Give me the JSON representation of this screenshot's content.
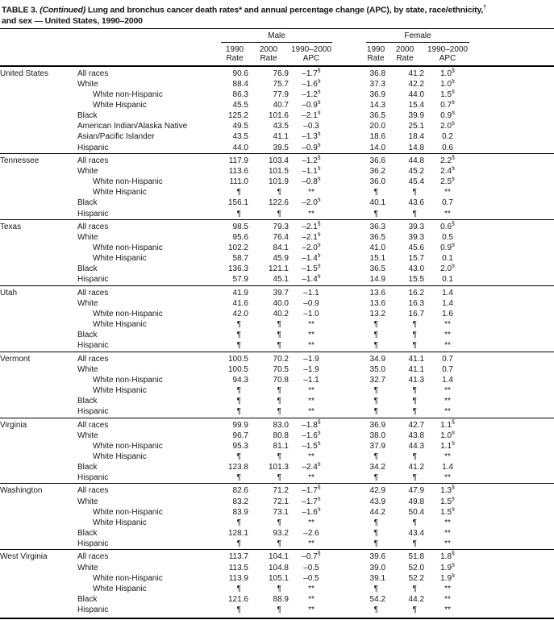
{
  "title": {
    "prefix": "TABLE 3.",
    "continued": "(Continued)",
    "line1_rest": " Lung and bronchus cancer death rates* and annual percentage change (APC), by state, race/ethnicity,",
    "dagger": "†",
    "line2": "and sex — United States, 1990–2000"
  },
  "header": {
    "male_label": "Male",
    "female_label": "Female",
    "col_year1": "1990",
    "col_year2": "2000",
    "col_range": "1990–2000",
    "col_rate": "Rate",
    "col_apc": "APC"
  },
  "markers": {
    "suppressed_rate": "¶",
    "suppressed_apc": "**",
    "significant": "§"
  },
  "sections": [
    {
      "state": "United States",
      "rows": [
        {
          "race": "All races",
          "indent": false,
          "values": [
            "90.6",
            "76.9",
            "–1.7§",
            "36.8",
            "41.2",
            "1.0§"
          ]
        },
        {
          "race": "White",
          "indent": false,
          "values": [
            "88.4",
            "75.7",
            "–1.6§",
            "37.3",
            "42.2",
            "1.0§"
          ]
        },
        {
          "race": "White non-Hispanic",
          "indent": true,
          "values": [
            "86.3",
            "77.9",
            "–1.2§",
            "36.9",
            "44.0",
            "1.5§"
          ]
        },
        {
          "race": "White Hispanic",
          "indent": true,
          "values": [
            "45.5",
            "40.7",
            "–0.9§",
            "14.3",
            "15.4",
            "0.7§"
          ]
        },
        {
          "race": "Black",
          "indent": false,
          "values": [
            "125.2",
            "101.6",
            "–2.1§",
            "36.5",
            "39.9",
            "0.9§"
          ]
        },
        {
          "race": "American Indian/Alaska Native",
          "indent": false,
          "values": [
            "49.5",
            "43.5",
            "–0.3",
            "20.0",
            "25.1",
            "2.0§"
          ]
        },
        {
          "race": "Asian/Pacific Islander",
          "indent": false,
          "values": [
            "43.5",
            "41.1",
            "–1.3§",
            "18.6",
            "18.4",
            "0.2"
          ]
        },
        {
          "race": "Hispanic",
          "indent": false,
          "values": [
            "44.0",
            "39.5",
            "–0.9§",
            "14.0",
            "14.8",
            "0.6"
          ]
        }
      ]
    },
    {
      "state": "Tennessee",
      "rows": [
        {
          "race": "All races",
          "indent": false,
          "values": [
            "117.9",
            "103.4",
            "–1.2§",
            "36.6",
            "44.8",
            "2.2§"
          ]
        },
        {
          "race": "White",
          "indent": false,
          "values": [
            "113.6",
            "101.5",
            "–1.1§",
            "36.2",
            "45.2",
            "2.4§"
          ]
        },
        {
          "race": "White non-Hispanic",
          "indent": true,
          "values": [
            "111.0",
            "101.9",
            "–0.8§",
            "36.0",
            "45.4",
            "2.5§"
          ]
        },
        {
          "race": "White Hispanic",
          "indent": true,
          "values": [
            "¶",
            "¶",
            "**",
            "¶",
            "¶",
            "**"
          ]
        },
        {
          "race": "Black",
          "indent": false,
          "values": [
            "156.1",
            "122.6",
            "–2.0§",
            "40.1",
            "43.6",
            "0.7"
          ]
        },
        {
          "race": "Hispanic",
          "indent": false,
          "values": [
            "¶",
            "¶",
            "**",
            "¶",
            "¶",
            "**"
          ]
        }
      ]
    },
    {
      "state": "Texas",
      "rows": [
        {
          "race": "All races",
          "indent": false,
          "values": [
            "98.5",
            "79.3",
            "–2.1§",
            "36.3",
            "39.3",
            "0.6§"
          ]
        },
        {
          "race": "White",
          "indent": false,
          "values": [
            "95.6",
            "76.4",
            "–2.1§",
            "36.5",
            "39.3",
            "0.5"
          ]
        },
        {
          "race": "White non-Hispanic",
          "indent": true,
          "values": [
            "102.2",
            "84.1",
            "–2.0§",
            "41.0",
            "45.6",
            "0.9§"
          ]
        },
        {
          "race": "White Hispanic",
          "indent": true,
          "values": [
            "58.7",
            "45.9",
            "–1.4§",
            "15.1",
            "15.7",
            "0.1"
          ]
        },
        {
          "race": "Black",
          "indent": false,
          "values": [
            "136.3",
            "121.1",
            "–1.5§",
            "36.5",
            "43.0",
            "2.0§"
          ]
        },
        {
          "race": "Hispanic",
          "indent": false,
          "values": [
            "57.9",
            "45.1",
            "–1.4§",
            "14.9",
            "15.5",
            "0.1"
          ]
        }
      ]
    },
    {
      "state": "Utah",
      "rows": [
        {
          "race": "All races",
          "indent": false,
          "values": [
            "41.9",
            "39.7",
            "–1.1",
            "13.6",
            "16.2",
            "1.4"
          ]
        },
        {
          "race": "White",
          "indent": false,
          "values": [
            "41.6",
            "40.0",
            "–0.9",
            "13.6",
            "16.3",
            "1.4"
          ]
        },
        {
          "race": "White non-Hispanic",
          "indent": true,
          "values": [
            "42.0",
            "40.2",
            "–1.0",
            "13.2",
            "16.7",
            "1.6"
          ]
        },
        {
          "race": "White Hispanic",
          "indent": true,
          "values": [
            "¶",
            "¶",
            "**",
            "¶",
            "¶",
            "**"
          ]
        },
        {
          "race": "Black",
          "indent": false,
          "values": [
            "¶",
            "¶",
            "**",
            "¶",
            "¶",
            "**"
          ]
        },
        {
          "race": "Hispanic",
          "indent": false,
          "values": [
            "¶",
            "¶",
            "**",
            "¶",
            "¶",
            "**"
          ]
        }
      ]
    },
    {
      "state": "Vermont",
      "rows": [
        {
          "race": "All races",
          "indent": false,
          "values": [
            "100.5",
            "70.2",
            "–1.9",
            "34.9",
            "41.1",
            "0.7"
          ]
        },
        {
          "race": "White",
          "indent": false,
          "values": [
            "100.5",
            "70.5",
            "–1.9",
            "35.0",
            "41.1",
            "0.7"
          ]
        },
        {
          "race": "White non-Hispanic",
          "indent": true,
          "values": [
            "94.3",
            "70.8",
            "–1.1",
            "32.7",
            "41.3",
            "1.4"
          ]
        },
        {
          "race": "White Hispanic",
          "indent": true,
          "values": [
            "¶",
            "¶",
            "**",
            "¶",
            "¶",
            "**"
          ]
        },
        {
          "race": "Black",
          "indent": false,
          "values": [
            "¶",
            "¶",
            "**",
            "¶",
            "¶",
            "**"
          ]
        },
        {
          "race": "Hispanic",
          "indent": false,
          "values": [
            "¶",
            "¶",
            "**",
            "¶",
            "¶",
            "**"
          ]
        }
      ]
    },
    {
      "state": "Virginia",
      "rows": [
        {
          "race": "All races",
          "indent": false,
          "values": [
            "99.9",
            "83.0",
            "–1.8§",
            "36.9",
            "42.7",
            "1.1§"
          ]
        },
        {
          "race": "White",
          "indent": false,
          "values": [
            "96.7",
            "80.8",
            "–1.6§",
            "38.0",
            "43.8",
            "1.0§"
          ]
        },
        {
          "race": "White non-Hispanic",
          "indent": true,
          "values": [
            "95.3",
            "81.1",
            "–1.5§",
            "37.9",
            "44.3",
            "1.1§"
          ]
        },
        {
          "race": "White Hispanic",
          "indent": true,
          "values": [
            "¶",
            "¶",
            "**",
            "¶",
            "¶",
            "**"
          ]
        },
        {
          "race": "Black",
          "indent": false,
          "values": [
            "123.8",
            "101.3",
            "–2.4§",
            "34.2",
            "41.2",
            "1.4"
          ]
        },
        {
          "race": "Hispanic",
          "indent": false,
          "values": [
            "¶",
            "¶",
            "**",
            "¶",
            "¶",
            "**"
          ]
        }
      ]
    },
    {
      "state": "Washington",
      "rows": [
        {
          "race": "All races",
          "indent": false,
          "values": [
            "82.6",
            "71.2",
            "–1.7§",
            "42.9",
            "47.9",
            "1.3§"
          ]
        },
        {
          "race": "White",
          "indent": false,
          "values": [
            "83.2",
            "72.1",
            "–1.7§",
            "43.9",
            "49.8",
            "1.5§"
          ]
        },
        {
          "race": "White non-Hispanic",
          "indent": true,
          "values": [
            "83.9",
            "73.1",
            "–1.6§",
            "44.2",
            "50.4",
            "1.5§"
          ]
        },
        {
          "race": "White Hispanic",
          "indent": true,
          "values": [
            "¶",
            "¶",
            "**",
            "¶",
            "¶",
            "**"
          ]
        },
        {
          "race": "Black",
          "indent": false,
          "values": [
            "128.1",
            "93.2",
            "–2.6",
            "¶",
            "43.4",
            "**"
          ]
        },
        {
          "race": "Hispanic",
          "indent": false,
          "values": [
            "¶",
            "¶",
            "**",
            "¶",
            "¶",
            "**"
          ]
        }
      ]
    },
    {
      "state": "West Virginia",
      "rows": [
        {
          "race": "All races",
          "indent": false,
          "values": [
            "113.7",
            "104.1",
            "–0.7§",
            "39.6",
            "51.8",
            "1.8§"
          ]
        },
        {
          "race": "White",
          "indent": false,
          "values": [
            "113.5",
            "104.8",
            "–0.5",
            "39.0",
            "52.0",
            "1.9§"
          ]
        },
        {
          "race": "White non-Hispanic",
          "indent": true,
          "values": [
            "113.9",
            "105.1",
            "–0.5",
            "39.1",
            "52.2",
            "1.9§"
          ]
        },
        {
          "race": "White Hispanic",
          "indent": true,
          "values": [
            "¶",
            "¶",
            "**",
            "¶",
            "¶",
            "**"
          ]
        },
        {
          "race": "Black",
          "indent": false,
          "values": [
            "121.6",
            "88.9",
            "**",
            "54.2",
            "44.2",
            "**"
          ]
        },
        {
          "race": "Hispanic",
          "indent": false,
          "values": [
            "¶",
            "¶",
            "**",
            "¶",
            "¶",
            "**"
          ]
        }
      ]
    }
  ]
}
